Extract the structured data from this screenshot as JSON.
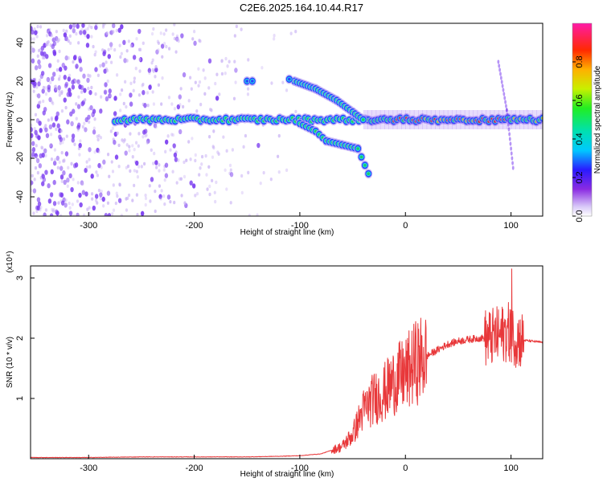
{
  "title": "C2E6.2025.164.10.44.R17",
  "colors": {
    "snr_line": "#e8383a",
    "band_core": "#e02828",
    "band_mid": "#22cc66",
    "band_edge": "#2a40ff",
    "noise": "#7a3cf0"
  },
  "chart_data": [
    {
      "type": "heatmap",
      "xlabel": "Height of straight line (km)",
      "ylabel": "Frequency (Hz)",
      "xlim": [
        -355,
        130
      ],
      "ylim": [
        -50,
        50
      ],
      "x_ticks": [
        -300,
        -200,
        -100,
        0,
        100
      ],
      "y_ticks": [
        -40,
        -20,
        0,
        20,
        40
      ],
      "colorbar": {
        "label": "Normalized spectral amplitude",
        "range": [
          0,
          1
        ],
        "ticks": [
          "0.0",
          "0.2",
          "0.4",
          "0.6",
          "0.8"
        ],
        "tick_values": [
          0.0,
          0.2,
          0.4,
          0.6,
          0.8
        ]
      },
      "features": {
        "main_band": {
          "x_range": [
            -275,
            130
          ],
          "frequency": 0
        },
        "upper_branch": [
          [
            -105,
            20
          ],
          [
            -85,
            16
          ],
          [
            -65,
            10
          ],
          [
            -50,
            4
          ],
          [
            -40,
            0
          ]
        ],
        "lower_branch": [
          [
            -100,
            -2
          ],
          [
            -85,
            -6
          ],
          [
            -75,
            -11
          ],
          [
            -60,
            -13
          ],
          [
            -45,
            -15
          ],
          [
            -35,
            -28
          ]
        ],
        "spur": [
          [
            88,
            30
          ],
          [
            96,
            5
          ],
          [
            102,
            -25
          ]
        ],
        "isolated_points": [
          [
            -150,
            20
          ],
          [
            -145,
            20
          ],
          [
            -110,
            21
          ]
        ]
      }
    },
    {
      "type": "line",
      "xlabel": "Height of straight line (km)",
      "ylabel": "SNR (10 * v/v)",
      "y_multiplier": "(x10⁴)",
      "xlim": [
        -355,
        130
      ],
      "ylim": [
        0,
        3.2
      ],
      "x_ticks": [
        -300,
        -200,
        -100,
        0,
        100
      ],
      "y_ticks": [
        1,
        2,
        3
      ],
      "series": [
        {
          "color": "#e8383a",
          "x": [
            -355,
            -300,
            -250,
            -200,
            -150,
            -120,
            -100,
            -80,
            -60,
            -50,
            -40,
            -30,
            -20,
            -10,
            0,
            10,
            20,
            30,
            40,
            50,
            60,
            70,
            80,
            90,
            95,
            100,
            105,
            110,
            120,
            130
          ],
          "y": [
            0.02,
            0.02,
            0.03,
            0.03,
            0.03,
            0.04,
            0.05,
            0.08,
            0.2,
            0.4,
            0.8,
            1.0,
            1.1,
            1.3,
            1.4,
            1.6,
            1.7,
            1.8,
            1.9,
            1.95,
            1.98,
            2.0,
            2.0,
            2.05,
            2.1,
            2.1,
            2.0,
            1.97,
            1.95,
            1.93
          ]
        }
      ]
    }
  ]
}
